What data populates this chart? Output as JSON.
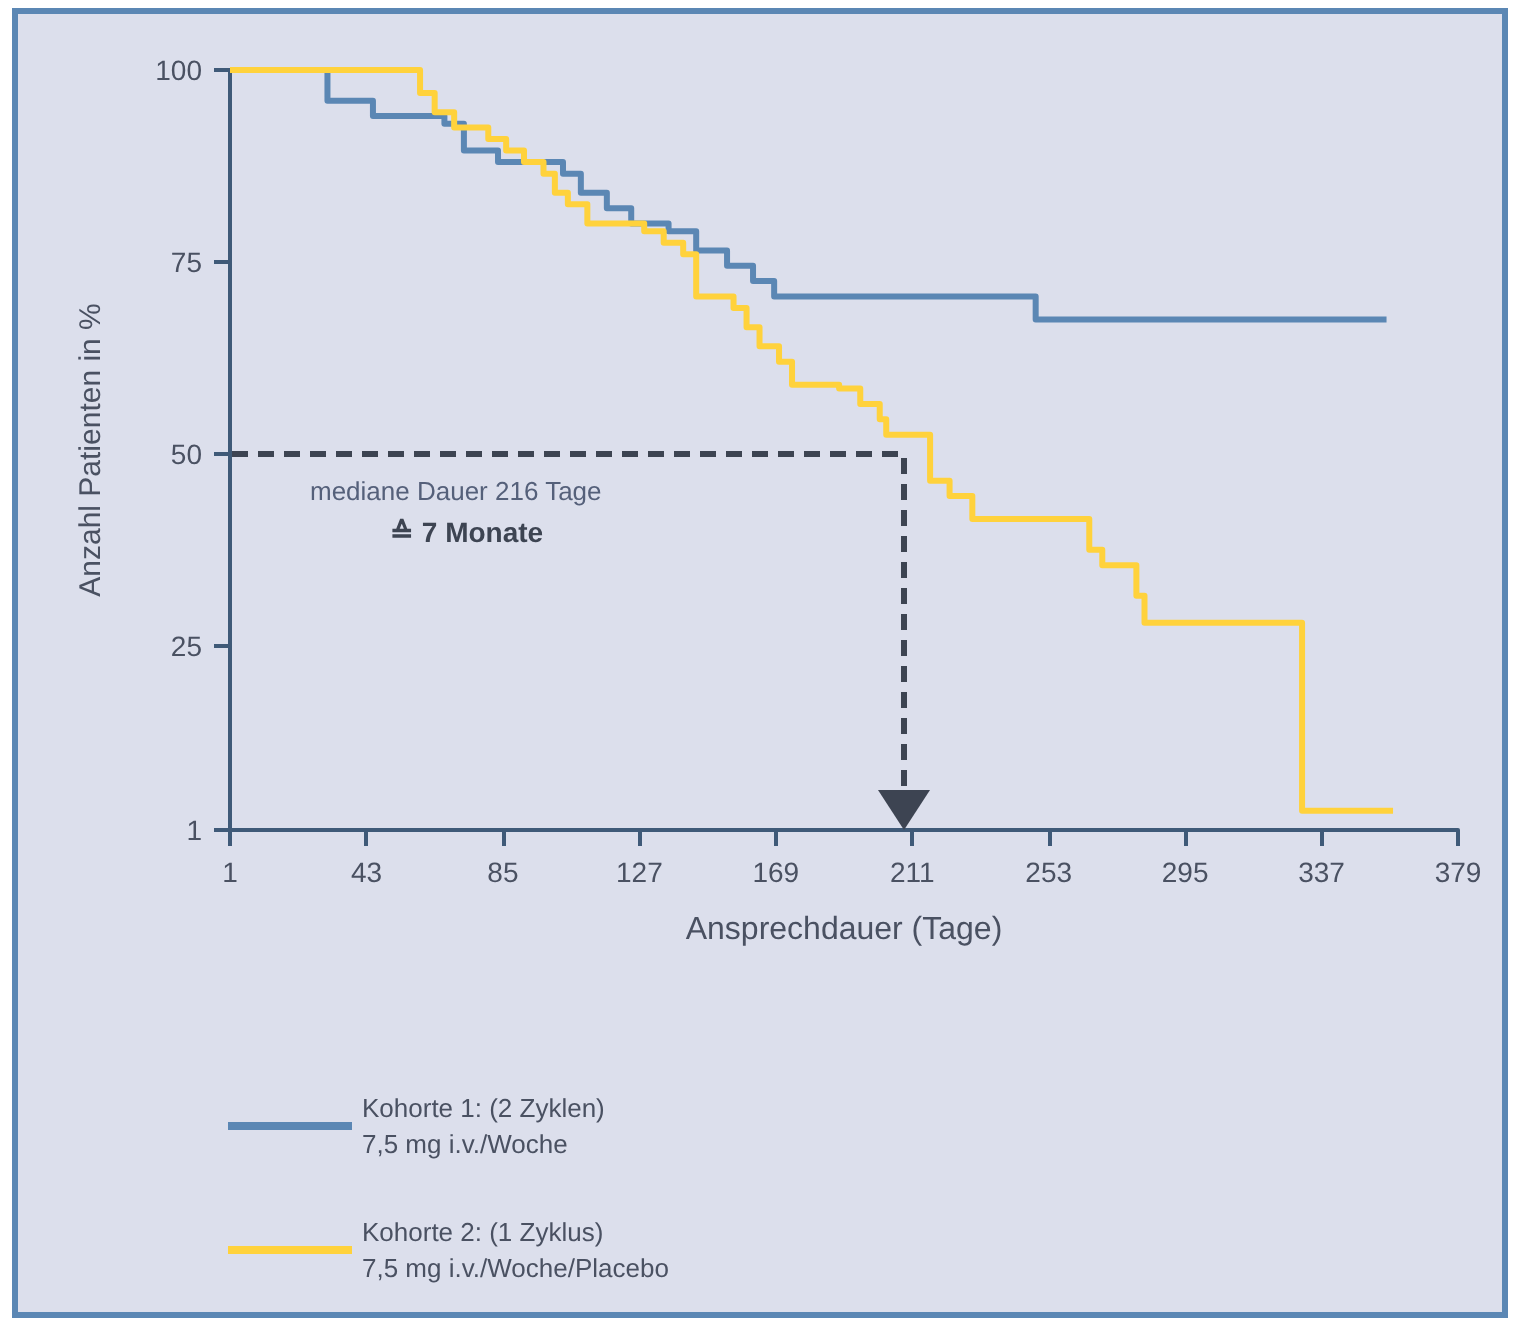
{
  "chart_data": {
    "type": "step",
    "xlabel": "Ansprechdauer (Tage)",
    "ylabel": "Anzahl Patienten in %",
    "xlim": [
      1,
      379
    ],
    "xticks": [
      1,
      43,
      85,
      127,
      169,
      211,
      253,
      295,
      337,
      379
    ],
    "ylim": [
      1,
      100
    ],
    "yticks": [
      1,
      25,
      50,
      75,
      100
    ],
    "grid": false,
    "legend": "bottom left",
    "marker": "none",
    "line_style": "solid",
    "annotations": [
      "mediane Dauer 216 Tage",
      "≙ 7 Monate"
    ],
    "series": [
      {
        "name": "Kohorte 1: (2 Zyklen)\n7,5 mg i.v./Woche",
        "color": "#5b87b4",
        "x": [
          1,
          31,
          45,
          67,
          73,
          83.5,
          103.5,
          109,
          117,
          124.5,
          136,
          144.5,
          154,
          162,
          168.5,
          249,
          357
        ],
        "values": [
          100,
          96,
          94,
          93,
          89.5,
          88,
          86.5,
          84,
          82,
          80,
          79,
          76.5,
          74.5,
          72.5,
          70.5,
          67.5,
          67.5
        ]
      },
      {
        "name": "Kohorte 2: (1 Zyklus)\n7,5 mg i.v./Woche/Placebo",
        "color": "#ffd23c",
        "x": [
          1,
          59.5,
          64,
          70,
          80.5,
          86,
          91.5,
          97.5,
          101,
          105,
          111,
          128.5,
          134.5,
          140.5,
          144.5,
          156,
          160,
          164,
          170,
          174,
          188.5,
          195,
          201,
          203,
          216.5,
          222.5,
          229.5,
          265.5,
          269.5,
          280,
          282.5,
          331,
          359
        ],
        "values": [
          100,
          97,
          94.5,
          92.5,
          91,
          89.5,
          88,
          86.5,
          84,
          82.5,
          80,
          79,
          77.5,
          76,
          70.5,
          69,
          66.5,
          64,
          62,
          59,
          58.5,
          56.5,
          54.5,
          52.5,
          46.5,
          44.5,
          41.5,
          37.5,
          35.5,
          31.5,
          28,
          3.5,
          3.5
        ]
      }
    ]
  }
}
